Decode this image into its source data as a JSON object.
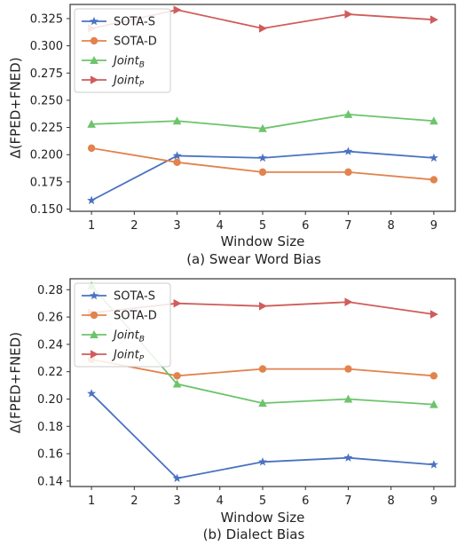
{
  "chart_data": [
    {
      "type": "line",
      "caption": "(a) Swear Word Bias",
      "xlabel": "Window Size",
      "ylabel": "Δ(FPED+FNED)",
      "x": [
        1,
        3,
        5,
        7,
        9
      ],
      "xticks": [
        "1",
        "2",
        "3",
        "4",
        "5",
        "6",
        "7",
        "8",
        "9"
      ],
      "xlim": [
        0.5,
        9.5
      ],
      "yticks": [
        "0.150",
        "0.175",
        "0.200",
        "0.225",
        "0.250",
        "0.275",
        "0.300",
        "0.325"
      ],
      "ylim": [
        0.148,
        0.338
      ],
      "legend_position": "top-left",
      "series": [
        {
          "name": "SOTA-S",
          "color": "#4a72c0",
          "marker": "star",
          "values": [
            0.158,
            0.199,
            0.197,
            0.203,
            0.197
          ]
        },
        {
          "name": "SOTA-D",
          "color": "#e2834e",
          "marker": "circle",
          "values": [
            0.206,
            0.193,
            0.184,
            0.184,
            0.177
          ]
        },
        {
          "name": "Joint",
          "sub": "B",
          "color": "#6cc46b",
          "marker": "triangle-up",
          "values": [
            0.228,
            0.231,
            0.224,
            0.237,
            0.231
          ]
        },
        {
          "name": "Joint",
          "sub": "P",
          "color": "#d05c5c",
          "marker": "triangle-right",
          "values": [
            0.316,
            0.333,
            0.316,
            0.329,
            0.324
          ]
        }
      ]
    },
    {
      "type": "line",
      "caption": "(b) Dialect Bias",
      "xlabel": "Window Size",
      "ylabel": "Δ(FPED+FNED)",
      "x": [
        1,
        3,
        5,
        7,
        9
      ],
      "xticks": [
        "1",
        "2",
        "3",
        "4",
        "5",
        "6",
        "7",
        "8",
        "9"
      ],
      "xlim": [
        0.5,
        9.5
      ],
      "yticks": [
        "0.14",
        "0.16",
        "0.18",
        "0.20",
        "0.22",
        "0.24",
        "0.26",
        "0.28"
      ],
      "ylim": [
        0.136,
        0.288
      ],
      "legend_position": "top-left",
      "series": [
        {
          "name": "SOTA-S",
          "color": "#4a72c0",
          "marker": "star",
          "values": [
            0.204,
            0.142,
            0.154,
            0.157,
            0.152
          ]
        },
        {
          "name": "SOTA-D",
          "color": "#e2834e",
          "marker": "circle",
          "values": [
            0.229,
            0.217,
            0.222,
            0.222,
            0.217
          ]
        },
        {
          "name": "Joint",
          "sub": "B",
          "color": "#6cc46b",
          "marker": "triangle-up",
          "values": [
            0.283,
            0.211,
            0.197,
            0.2,
            0.196
          ]
        },
        {
          "name": "Joint",
          "sub": "P",
          "color": "#d05c5c",
          "marker": "triangle-right",
          "values": [
            0.263,
            0.27,
            0.268,
            0.271,
            0.262
          ]
        }
      ]
    }
  ]
}
